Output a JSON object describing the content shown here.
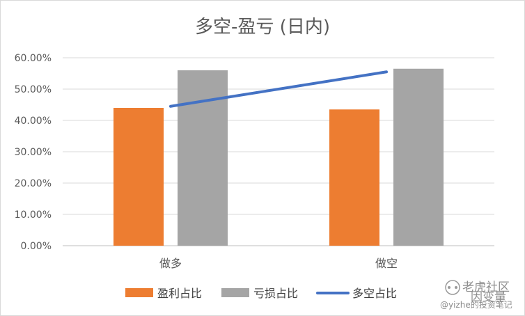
{
  "chart_data": {
    "type": "bar",
    "title": "多空-盈亏 (日内)",
    "categories": [
      "做多",
      "做空"
    ],
    "series": [
      {
        "name": "盈利占比",
        "type": "bar",
        "color": "#ED7D31",
        "values": [
          0.44,
          0.435
        ]
      },
      {
        "name": "亏损占比",
        "type": "bar",
        "color": "#A5A5A5",
        "values": [
          0.56,
          0.565
        ]
      },
      {
        "name": "多空占比",
        "type": "line",
        "color": "#4472C4",
        "values": [
          0.445,
          0.555
        ]
      }
    ],
    "yticks": [
      "0.00%",
      "10.00%",
      "20.00%",
      "30.00%",
      "40.00%",
      "50.00%",
      "60.00%"
    ],
    "ylim": [
      0,
      0.6
    ],
    "grid": true,
    "legend": "bottom"
  },
  "watermark": {
    "line1": "老虎社区",
    "line2": "@yizhe的投资笔记",
    "overlay": "因变量"
  }
}
